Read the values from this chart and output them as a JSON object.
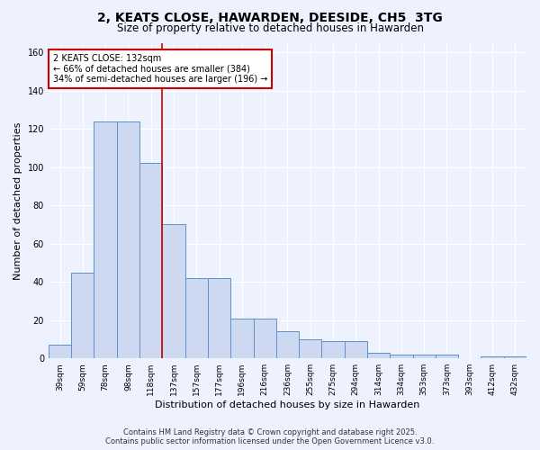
{
  "title": "2, KEATS CLOSE, HAWARDEN, DEESIDE, CH5  3TG",
  "subtitle": "Size of property relative to detached houses in Hawarden",
  "xlabel": "Distribution of detached houses by size in Hawarden",
  "ylabel": "Number of detached properties",
  "categories": [
    "39sqm",
    "59sqm",
    "78sqm",
    "98sqm",
    "118sqm",
    "137sqm",
    "157sqm",
    "177sqm",
    "196sqm",
    "216sqm",
    "236sqm",
    "255sqm",
    "275sqm",
    "294sqm",
    "314sqm",
    "334sqm",
    "353sqm",
    "373sqm",
    "393sqm",
    "412sqm",
    "432sqm"
  ],
  "values": [
    7,
    45,
    124,
    124,
    102,
    70,
    42,
    42,
    21,
    21,
    14,
    10,
    9,
    9,
    3,
    2,
    2,
    2,
    0,
    1,
    1
  ],
  "bar_color": "#ccd9f0",
  "bar_edge_color": "#6090c8",
  "annotation_text": "2 KEATS CLOSE: 132sqm\n← 66% of detached houses are smaller (384)\n34% of semi-detached houses are larger (196) →",
  "annotation_box_color": "#ffffff",
  "annotation_box_edge_color": "#cc0000",
  "red_line_color": "#cc0000",
  "ylim": [
    0,
    165
  ],
  "yticks": [
    0,
    20,
    40,
    60,
    80,
    100,
    120,
    140,
    160
  ],
  "footer_line1": "Contains HM Land Registry data © Crown copyright and database right 2025.",
  "footer_line2": "Contains public sector information licensed under the Open Government Licence v3.0.",
  "bg_color": "#eef2ff",
  "plot_bg_color": "#eef2ff",
  "title_fontsize": 10,
  "subtitle_fontsize": 8.5,
  "tick_fontsize": 6.5,
  "ylabel_fontsize": 8,
  "xlabel_fontsize": 8,
  "annot_fontsize": 7,
  "footer_fontsize": 6
}
